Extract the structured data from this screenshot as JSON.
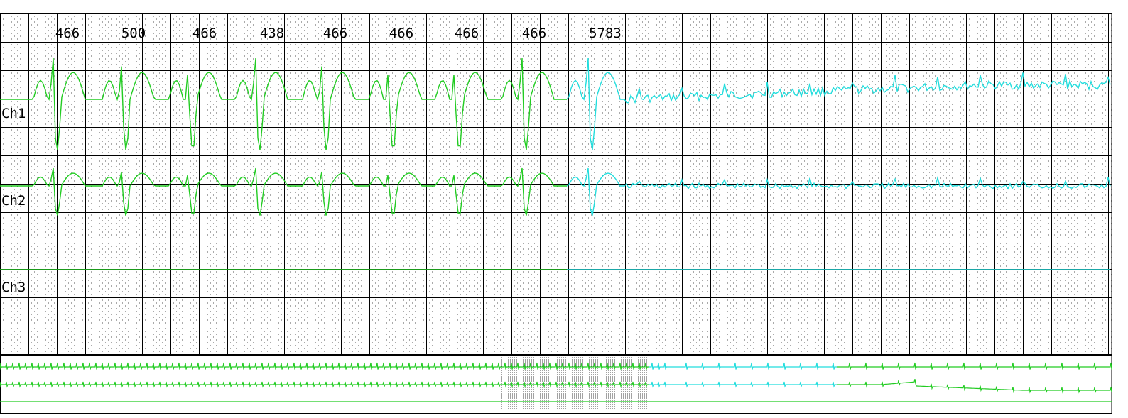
{
  "chart_data": {
    "type": "line",
    "title": "",
    "rr_intervals_ms": [
      "466",
      "500",
      "466",
      "438",
      "466",
      "466",
      "466",
      "466",
      "5783"
    ],
    "channels": [
      {
        "label": "Ch1",
        "beats": 9,
        "pause_after_beat": 9,
        "color_before_pause": "#22cc22",
        "color_after_pause": "#22dddd"
      },
      {
        "label": "Ch2",
        "beats": 9,
        "pause_after_beat": 9,
        "color_before_pause": "#22cc22",
        "color_after_pause": "#22dddd"
      },
      {
        "label": "Ch3",
        "beats": 0,
        "flat": true,
        "color_before_pause": "#22cc22",
        "color_after_pause": "#22dddd"
      }
    ],
    "overview_strip": {
      "traces": 3,
      "highlighted_segment": "dotted box around the current window",
      "fast_rhythm_then_slow": true
    },
    "grid": true,
    "colors": {
      "grid_major": "#000000",
      "grid_minor_dots": "#555555",
      "trace_primary": "#22cc22",
      "trace_secondary": "#22dddd",
      "text": "#000000"
    }
  }
}
